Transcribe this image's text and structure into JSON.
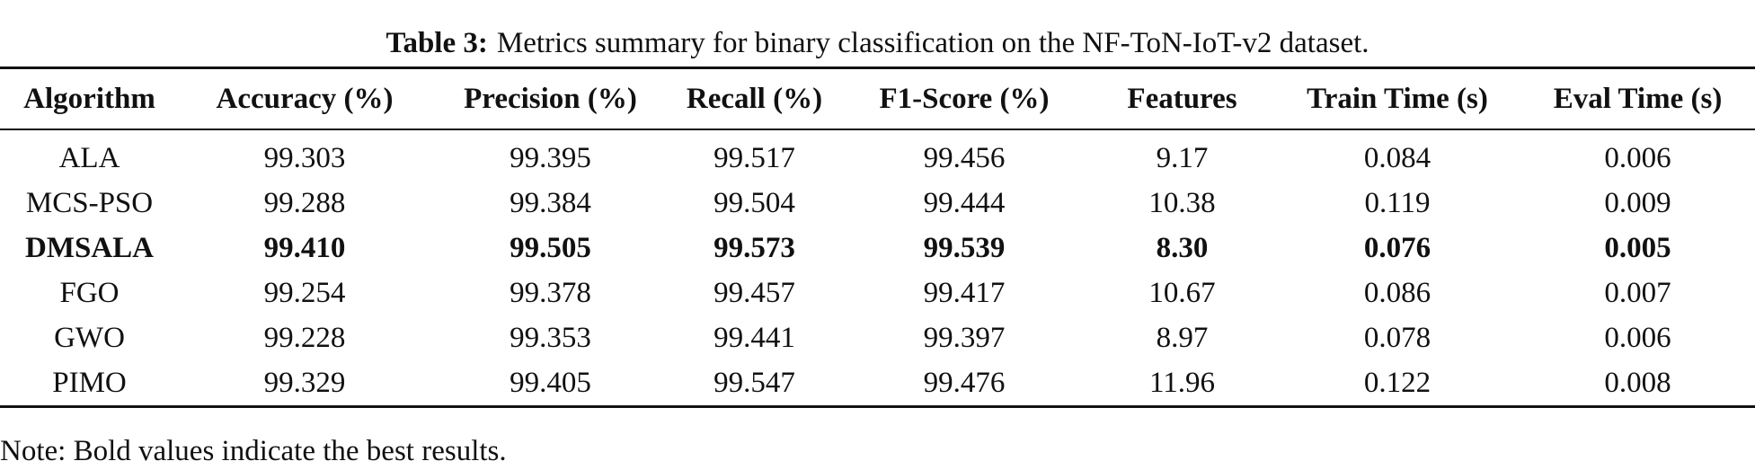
{
  "caption": {
    "label": "Table 3:",
    "text": "Metrics summary for binary classification on the NF-ToN-IoT-v2 dataset."
  },
  "table": {
    "columns": [
      "Algorithm",
      "Accuracy (%)",
      "Precision (%)",
      "Recall (%)",
      "F1-Score (%)",
      "Features",
      "Train Time (s)",
      "Eval Time (s)"
    ],
    "rows": [
      [
        "ALA",
        "99.303",
        "99.395",
        "99.517",
        "99.456",
        "9.17",
        "0.084",
        "0.006"
      ],
      [
        "MCS-PSO",
        "99.288",
        "99.384",
        "99.504",
        "99.444",
        "10.38",
        "0.119",
        "0.009"
      ],
      [
        "DMSALA",
        "99.410",
        "99.505",
        "99.573",
        "99.539",
        "8.30",
        "0.076",
        "0.005"
      ],
      [
        "FGO",
        "99.254",
        "99.378",
        "99.457",
        "99.417",
        "10.67",
        "0.086",
        "0.007"
      ],
      [
        "GWO",
        "99.228",
        "99.353",
        "99.441",
        "99.397",
        "8.97",
        "0.078",
        "0.006"
      ],
      [
        "PIMO",
        "99.329",
        "99.405",
        "99.547",
        "99.476",
        "11.96",
        "0.122",
        "0.008"
      ]
    ]
  },
  "note": "Note: Bold values indicate the best results."
}
